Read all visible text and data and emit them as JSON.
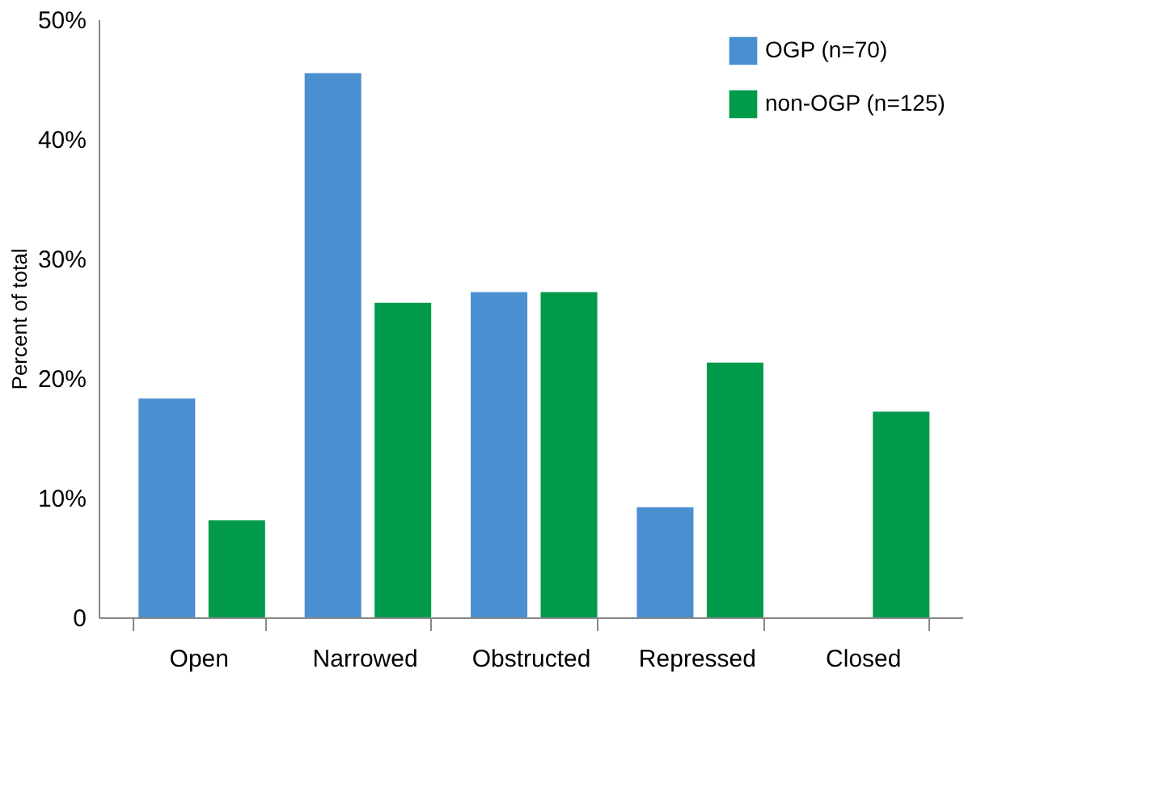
{
  "chart_data": {
    "type": "bar",
    "ylabel": "Percent of total",
    "categories": [
      "Open",
      "Narrowed",
      "Obstructed",
      "Repressed",
      "Closed"
    ],
    "series": [
      {
        "name": "OGP (n=70)",
        "color": "#4a90d0",
        "values": [
          18.3,
          45.5,
          27.2,
          9.2,
          0
        ]
      },
      {
        "name": "non-OGP (n=125)",
        "color": "#009a4a",
        "values": [
          8.1,
          26.3,
          27.2,
          21.3,
          17.2
        ]
      }
    ],
    "ylim": [
      0,
      50
    ],
    "yticks": [
      {
        "value": 0,
        "label": "0"
      },
      {
        "value": 10,
        "label": "10%"
      },
      {
        "value": 20,
        "label": "20%"
      },
      {
        "value": 30,
        "label": "30%"
      },
      {
        "value": 40,
        "label": "40%"
      },
      {
        "value": 50,
        "label": "50%"
      }
    ],
    "grid": false,
    "legend": "top right"
  }
}
